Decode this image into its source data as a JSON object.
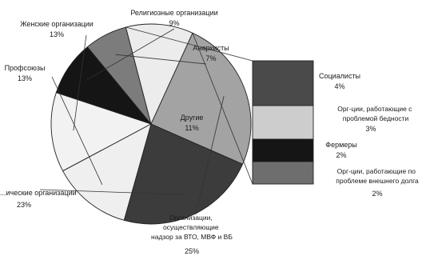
{
  "chart_data": [
    {
      "type": "pie",
      "title": "",
      "unit": "%",
      "slices": [
        {
          "label": "Женские организации",
          "value": 13,
          "value_label": "13%",
          "color": "#f2f2f2"
        },
        {
          "label": "Религиозные организации",
          "value": 9,
          "value_label": "9%",
          "color": "#151515"
        },
        {
          "label": "Анархисты",
          "value": 7,
          "value_label": "7%",
          "color": "#7c7c7c"
        },
        {
          "label": "Другие",
          "value": 11,
          "value_label": "11%",
          "color": "#ececec"
        },
        {
          "label": "Организации, осуществляющие надзор за ВТО, МВФ и ВБ",
          "value": 25,
          "value_label": "25%",
          "color": "#a3a3a3"
        },
        {
          "label": "...ические организации",
          "value": 23,
          "value_label": "23%",
          "color": "#3c3c3c"
        },
        {
          "label": "Профсоюзы",
          "value": 13,
          "value_label": "13%",
          "color": "#efefef"
        }
      ]
    },
    {
      "type": "bar",
      "stacked": true,
      "title": "",
      "unit": "%",
      "segments": [
        {
          "label": "Социалисты",
          "value": 4,
          "value_label": "4%",
          "color": "#4a4a4a"
        },
        {
          "label": "Орг-ции, работающие с проблемой бедности",
          "value": 3,
          "value_label": "3%",
          "color": "#cdcdcd"
        },
        {
          "label": "Фермеры",
          "value": 2,
          "value_label": "2%",
          "color": "#151515"
        },
        {
          "label": "Орг-ции, работающие по проблеме внешнего долга",
          "value": 2,
          "value_label": "2%",
          "color": "#6e6e6e"
        }
      ]
    }
  ]
}
